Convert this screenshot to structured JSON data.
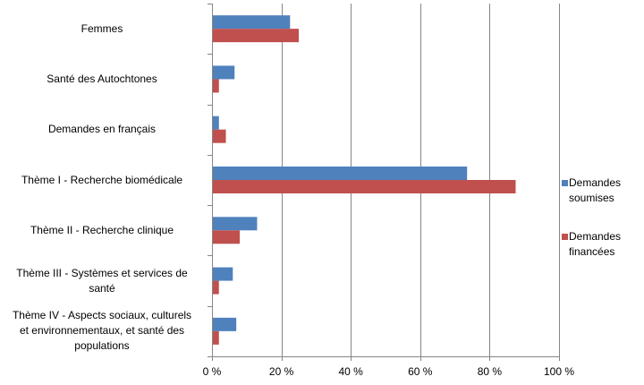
{
  "chart_data": {
    "type": "bar",
    "orientation": "horizontal",
    "title": "",
    "xlabel": "",
    "ylabel": "",
    "categories": [
      "Femmes",
      "Santé des Autochtones",
      "Demandes en français",
      "Thème I - Recherche biomédicale",
      "Thème II - Recherche clinique",
      "Thème III - Systèmes et services de santé",
      "Thème IV - Aspects sociaux, culturels et environnementaux, et santé des populations"
    ],
    "category_lines": [
      [
        "Femmes"
      ],
      [
        "Santé des Autochtones"
      ],
      [
        "Demandes en français"
      ],
      [
        "Thème I - Recherche biomédicale"
      ],
      [
        "Thème II - Recherche clinique"
      ],
      [
        "Thème III - Systèmes et services de",
        "santé"
      ],
      [
        "Thème IV - Aspects sociaux, culturels",
        "et environnementaux, et santé des",
        "populations"
      ]
    ],
    "series": [
      {
        "name": "Demandes soumises",
        "name_lines": [
          "Demandes",
          "soumises"
        ],
        "color": "#4F81BD",
        "values": [
          22.5,
          6.5,
          2,
          73.5,
          13,
          6,
          7
        ]
      },
      {
        "name": "Demandes financées",
        "name_lines": [
          "Demandes",
          "financées"
        ],
        "color": "#C0504D",
        "values": [
          25,
          2,
          4,
          87.5,
          8,
          2,
          2
        ]
      }
    ],
    "xlim": [
      0,
      100
    ],
    "xticks": [
      0,
      20,
      40,
      60,
      80,
      100
    ],
    "tick_labels": [
      "0 %",
      "20 %",
      "40 %",
      "60 %",
      "80 %",
      "100 %"
    ],
    "grid": true,
    "legend_position": "right"
  }
}
